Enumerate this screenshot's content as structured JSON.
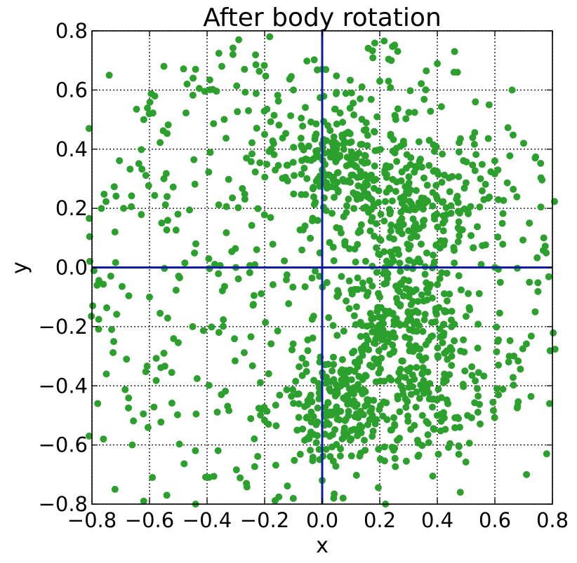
{
  "chart_data": {
    "type": "scatter",
    "title": "After body rotation",
    "xlabel": "x",
    "ylabel": "y",
    "xlim": [
      -0.8,
      0.8
    ],
    "ylim": [
      -0.8,
      0.8
    ],
    "xticks": [
      "−0.8",
      "−0.6",
      "−0.4",
      "−0.2",
      "0.0",
      "0.2",
      "0.4",
      "0.6",
      "0.8"
    ],
    "yticks": [
      "0.8",
      "0.6",
      "0.4",
      "0.2",
      "0.0",
      "−0.2",
      "−0.4",
      "−0.6",
      "−0.8"
    ],
    "grid": true,
    "grid_style": "dotted",
    "reference_lines": {
      "x": 0.0,
      "y": 0.0,
      "color": "#0b1aa8"
    },
    "marker_color": "#2ca02c",
    "point_count": 1400,
    "series": [
      {
        "points": [
          [
            -0.81,
            0.47
          ],
          [
            -0.62,
            0.5
          ],
          [
            -0.55,
            0.68
          ],
          [
            -0.44,
            0.67
          ],
          [
            -0.29,
            0.77
          ],
          [
            -0.31,
            0.72
          ],
          [
            -0.74,
            0.65
          ],
          [
            -0.69,
            0.2
          ],
          [
            -0.72,
            0.12
          ],
          [
            -0.68,
            -0.31
          ],
          [
            -0.75,
            -0.36
          ],
          [
            -0.78,
            -0.46
          ],
          [
            -0.81,
            -0.57
          ],
          [
            -0.76,
            -0.58
          ],
          [
            -0.72,
            -0.75
          ],
          [
            -0.66,
            -0.6
          ],
          [
            -0.59,
            -0.71
          ],
          [
            -0.54,
            -0.77
          ],
          [
            -0.62,
            -0.79
          ],
          [
            -0.44,
            -0.8
          ],
          [
            0.0,
            -0.72
          ],
          [
            0.04,
            -0.78
          ],
          [
            0.22,
            -0.8
          ],
          [
            0.48,
            -0.76
          ],
          [
            0.71,
            -0.7
          ],
          [
            0.78,
            -0.63
          ],
          [
            0.79,
            -0.46
          ],
          [
            0.74,
            -0.15
          ],
          [
            0.72,
            -0.05
          ],
          [
            0.77,
            0.1
          ],
          [
            0.72,
            0.15
          ],
          [
            0.7,
            0.42
          ],
          [
            0.74,
            0.37
          ],
          [
            0.66,
            0.6
          ],
          [
            0.58,
            0.55
          ],
          [
            0.47,
            0.66
          ],
          [
            0.46,
            0.73
          ],
          [
            0.24,
            0.7
          ],
          [
            0.2,
            0.63
          ],
          [
            0.0,
            0.67
          ],
          [
            -0.1,
            0.6
          ],
          [
            -0.27,
            0.67
          ],
          [
            0.05,
            0.4
          ],
          [
            0.1,
            0.35
          ],
          [
            0.3,
            0.25
          ],
          [
            0.42,
            0.15
          ],
          [
            0.2,
            -0.1
          ],
          [
            -0.05,
            -0.45
          ],
          [
            0.02,
            -0.5
          ],
          [
            0.15,
            -0.42
          ],
          [
            0.3,
            -0.35
          ],
          [
            0.45,
            -0.3
          ],
          [
            -0.3,
            0.0
          ],
          [
            -0.45,
            -0.2
          ],
          [
            -0.55,
            0.3
          ],
          [
            -0.6,
            -0.1
          ],
          [
            0.6,
            0.0
          ],
          [
            0.65,
            -0.3
          ],
          [
            0.55,
            0.3
          ],
          [
            -0.2,
            0.45
          ]
        ]
      }
    ]
  }
}
